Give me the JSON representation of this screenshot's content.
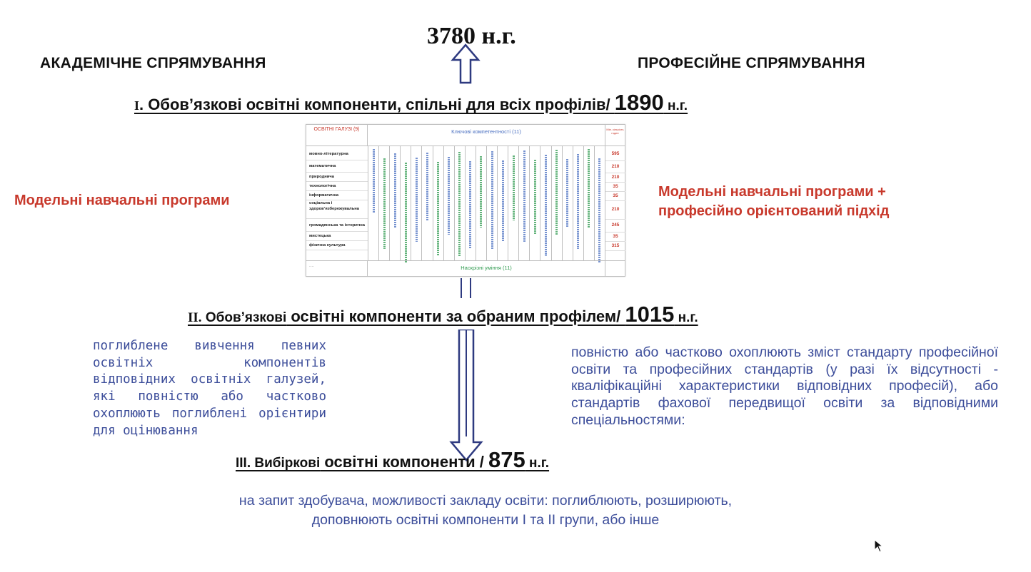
{
  "total": {
    "value": "3780",
    "unit": "н.г."
  },
  "directions": {
    "left": "АКАДЕМІЧНЕ СПРЯМУВАННЯ",
    "right": "ПРОФЕСІЙНЕ СПРЯМУВАННЯ"
  },
  "section1": {
    "roman": "I",
    "title": ". Обов’язкові освітні компоненти, спільні для всіх профілів/ ",
    "hours": "1890",
    "unit": " н.г."
  },
  "section2": {
    "roman": "II.",
    "title_a": " Обов’язкові",
    "title_b": " освітні компоненти за обраним профілем/ ",
    "hours": "1015",
    "unit": " н.г."
  },
  "section3": {
    "roman": "III. Вибіркові",
    "title": " освітні компоненти / ",
    "hours": "875",
    "unit": " н.г."
  },
  "left_note": "Модельні навчальні програми",
  "right_note_line1": "Модельні навчальні програми +",
  "right_note_line2": "професійно орієнтований підхід",
  "left_desc": "поглиблене вивчення певних освітніх компонентів відповідних освітніх галузей, які повністю або частково охоплюють поглиблені орієнтири для оцінювання",
  "right_desc": "повністю або частково охоплюють зміст стандарту професійної освіти та професійних стандартів (у разі їх відсутності - кваліфікаційні характеристики відповідних професій), або стандартів фахової передвищої освіти за відповідними спеціальностями:",
  "bottom_desc_line1": "на запит здобувача, можливості закладу освіти: поглиблюють, розширюють,",
  "bottom_desc_line2": "доповнюють освітні компоненти І та ІІ групи, або інше",
  "table": {
    "header_left": "ОСВІТНІ ГАЛУЗІ (9)",
    "header_center": "Ключові компетентності (11)",
    "header_right": "Мін. кількість годин",
    "footer_center": "Наскрізні уміння (11)",
    "footer_left": "....",
    "rows": [
      {
        "name": "мовно-літературна",
        "hours": "595"
      },
      {
        "name": "математична",
        "hours": "210"
      },
      {
        "name": "природнича",
        "hours": "210"
      },
      {
        "name": "технологічна",
        "hours": "35"
      },
      {
        "name": "інформатична",
        "hours": "35"
      },
      {
        "name": "соціальна і здоров’язбережувальна",
        "hours": "210"
      },
      {
        "name": "громадянська та історична",
        "hours": "245"
      },
      {
        "name": "мистецька",
        "hours": "35"
      },
      {
        "name": "фізична культура",
        "hours": "315"
      }
    ]
  },
  "colors": {
    "red": "#c8392c",
    "blue": "#3c4d9a",
    "arrow": "#2e3a80"
  }
}
